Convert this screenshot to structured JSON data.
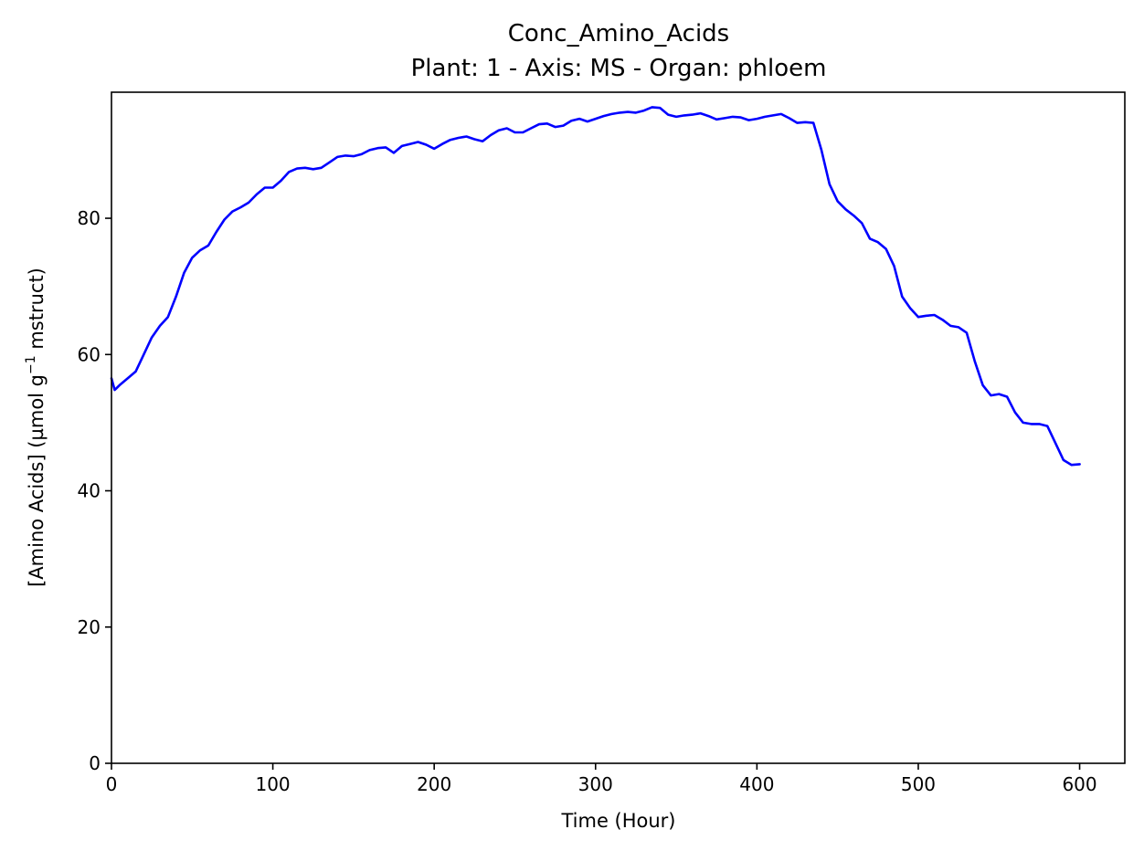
{
  "chart_data": {
    "type": "line",
    "title": "Conc_Amino_Acids",
    "subtitle": "Plant: 1 - Axis: MS - Organ: phloem",
    "xlabel": "Time (Hour)",
    "ylabel_main": "[Amino Acids] (µmol g",
    "ylabel_sup": "−1",
    "ylabel_tail": " mstruct)",
    "xlim": [
      0,
      628
    ],
    "ylim": [
      0,
      98.5
    ],
    "xticks": [
      0,
      100,
      200,
      300,
      400,
      500,
      600
    ],
    "yticks": [
      0,
      20,
      40,
      60,
      80
    ],
    "grid": false,
    "series": [
      {
        "color": "#0000ff",
        "x": [
          0,
          2,
          5,
          10,
          15,
          20,
          25,
          30,
          35,
          40,
          45,
          50,
          55,
          60,
          65,
          70,
          75,
          80,
          85,
          90,
          95,
          100,
          105,
          110,
          115,
          120,
          125,
          130,
          135,
          140,
          145,
          150,
          155,
          160,
          165,
          170,
          175,
          180,
          185,
          190,
          195,
          200,
          205,
          210,
          215,
          220,
          225,
          230,
          235,
          240,
          245,
          250,
          255,
          260,
          265,
          270,
          275,
          280,
          285,
          290,
          295,
          300,
          305,
          310,
          315,
          320,
          325,
          330,
          335,
          340,
          345,
          350,
          355,
          360,
          365,
          370,
          375,
          380,
          385,
          390,
          395,
          400,
          405,
          410,
          415,
          420,
          425,
          430,
          435,
          440,
          445,
          450,
          455,
          460,
          465,
          470,
          475,
          480,
          485,
          490,
          495,
          500,
          505,
          510,
          515,
          520,
          525,
          530,
          535,
          540,
          545,
          550,
          555,
          560,
          565,
          570,
          575,
          580,
          585,
          590,
          595,
          600
        ],
        "y": [
          56.5,
          54.8,
          55.5,
          56.5,
          57.5,
          60.0,
          62.5,
          64.2,
          65.5,
          68.5,
          72.0,
          74.2,
          75.3,
          76.0,
          78.0,
          79.8,
          81.0,
          81.6,
          82.3,
          83.5,
          84.5,
          84.5,
          85.5,
          86.8,
          87.3,
          87.4,
          87.2,
          87.4,
          88.2,
          89.0,
          89.2,
          89.1,
          89.4,
          90.0,
          90.3,
          90.4,
          89.6,
          90.6,
          90.9,
          91.2,
          90.8,
          90.2,
          90.9,
          91.5,
          91.8,
          92.0,
          91.6,
          91.3,
          92.2,
          92.9,
          93.2,
          92.6,
          92.6,
          93.2,
          93.8,
          93.9,
          93.4,
          93.6,
          94.3,
          94.6,
          94.2,
          94.6,
          95.0,
          95.3,
          95.5,
          95.6,
          95.5,
          95.8,
          96.3,
          96.2,
          95.2,
          94.9,
          95.1,
          95.2,
          95.4,
          95.0,
          94.5,
          94.7,
          94.9,
          94.8,
          94.4,
          94.6,
          94.9,
          95.1,
          95.3,
          94.7,
          94.0,
          94.1,
          94.0,
          90.0,
          85.0,
          82.5,
          81.3,
          80.4,
          79.3,
          77.0,
          76.5,
          75.5,
          73.0,
          68.5,
          66.8,
          65.5,
          65.7,
          65.8,
          65.1,
          64.2,
          64.0,
          63.2,
          59.0,
          55.5,
          54.0,
          54.2,
          53.8,
          51.5,
          50.0,
          49.8,
          49.8,
          49.5,
          47.0,
          44.5,
          43.8,
          43.9
        ]
      }
    ]
  }
}
